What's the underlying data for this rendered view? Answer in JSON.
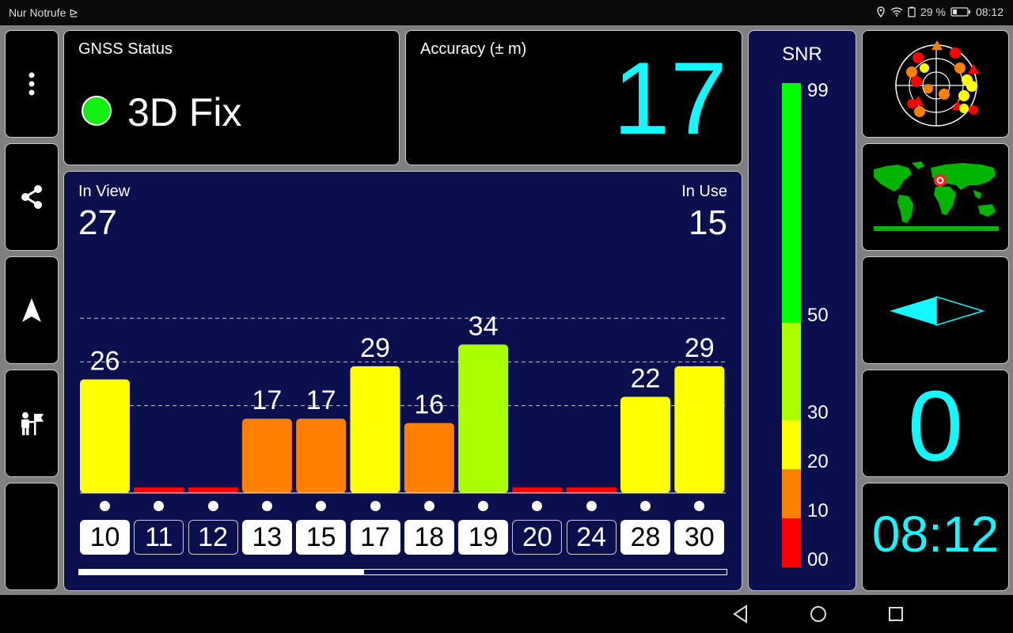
{
  "status_bar": {
    "carrier": "Nur Notrufe",
    "battery": "29 %",
    "time": "08:12"
  },
  "gnss": {
    "label": "GNSS Status",
    "fix": "3D Fix",
    "fix_color": "#11f011"
  },
  "accuracy": {
    "label": "Accuracy (± m)",
    "value": "17"
  },
  "satellites": {
    "in_view_label": "In View",
    "in_view": "27",
    "in_use_label": "In Use",
    "in_use": "15",
    "scroll_progress": 0.44
  },
  "chart_data": {
    "type": "bar",
    "categories": [
      "10",
      "11",
      "12",
      "13",
      "15",
      "17",
      "18",
      "19",
      "20",
      "24",
      "28",
      "30"
    ],
    "values": [
      26,
      0,
      0,
      17,
      17,
      29,
      16,
      34,
      0,
      0,
      22,
      29
    ],
    "value_labels": [
      "26",
      "",
      "",
      "17",
      "17",
      "29",
      "16",
      "34",
      "",
      "",
      "22",
      "29"
    ],
    "used": [
      true,
      false,
      false,
      true,
      true,
      true,
      true,
      true,
      false,
      false,
      true,
      true
    ],
    "colors": [
      "#ffff00",
      "#ff0000",
      "#ff0000",
      "#ff8000",
      "#ff8000",
      "#ffff00",
      "#ff8000",
      "#aaff00",
      "#ff0000",
      "#ff0000",
      "#ffff00",
      "#ffff00"
    ],
    "ylim": [
      0,
      50
    ],
    "gridlines": [
      20,
      30,
      40
    ],
    "grid": true
  },
  "snr": {
    "title": "SNR",
    "ticks": [
      "99",
      "50",
      "30",
      "20",
      "10",
      "00"
    ],
    "colors": [
      "#00ff00",
      "#aaff00",
      "#ffff00",
      "#ff8000",
      "#ff0000"
    ]
  },
  "right": {
    "value": "0",
    "time": "08:12"
  }
}
